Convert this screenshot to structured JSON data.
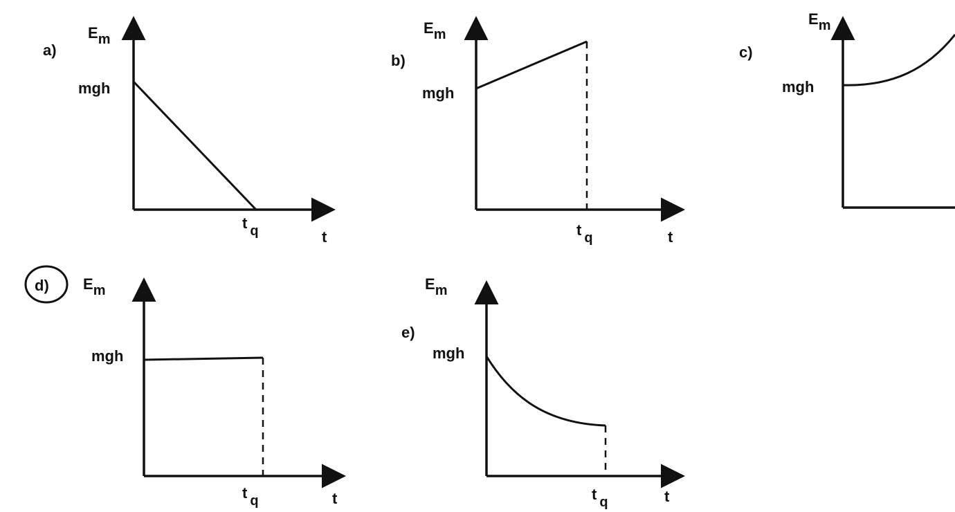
{
  "panels": [
    {
      "label": "a)",
      "ylabel": {
        "main": "E",
        "sub": "m"
      },
      "level": "mgh",
      "xmark": {
        "main": "t",
        "sub": "q"
      },
      "xlabel": "t"
    },
    {
      "label": "b)",
      "ylabel": {
        "main": "E",
        "sub": "m"
      },
      "level": "mgh",
      "xmark": {
        "main": "t",
        "sub": "q"
      },
      "xlabel": "t"
    },
    {
      "label": "c)",
      "ylabel": {
        "main": "E",
        "sub": "m"
      },
      "level": "mgh"
    },
    {
      "label": "d)",
      "ylabel": {
        "main": "E",
        "sub": "m"
      },
      "level": "mgh",
      "xmark": {
        "main": "t",
        "sub": "q"
      },
      "xlabel": "t"
    },
    {
      "label": "e)",
      "ylabel": {
        "main": "E",
        "sub": "m"
      },
      "level": "mgh",
      "xmark": {
        "main": "t",
        "sub": "q"
      },
      "xlabel": "t"
    }
  ]
}
